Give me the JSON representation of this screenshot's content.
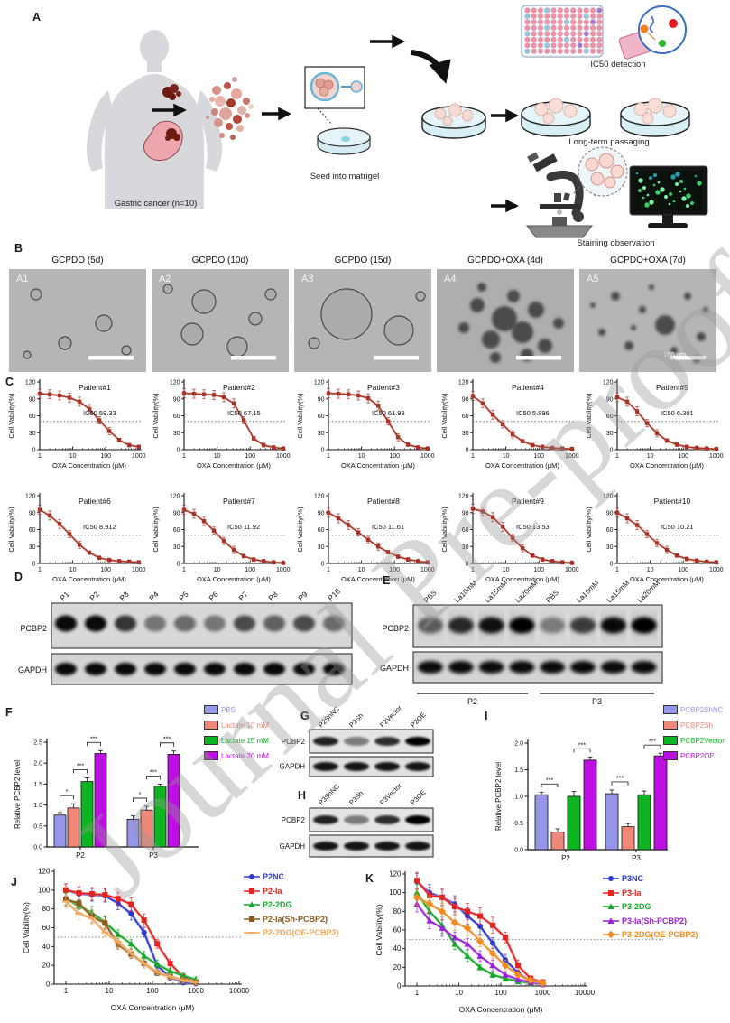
{
  "watermark": "Journal Pre-proof",
  "panel_labels": {
    "A": "A",
    "B": "B",
    "C": "C",
    "D": "D",
    "E": "E",
    "F": "F",
    "G": "G",
    "H": "H",
    "I": "I",
    "J": "J",
    "K": "K"
  },
  "panel_a": {
    "gastric_caption": "Gastric cancer (n=10)",
    "seed_caption": "Seed into matrigel",
    "ic50_caption": "IC50 detection",
    "passaging_caption": "Long-term passaging",
    "staining_caption": "Staining observation"
  },
  "panel_b": {
    "images": [
      {
        "tag": "A1",
        "title": "GCPDO (5d)"
      },
      {
        "tag": "A2",
        "title": "GCPDO (10d)"
      },
      {
        "tag": "A3",
        "title": "GCPDO (15d)"
      },
      {
        "tag": "A4",
        "title": "GCPDO+OXA (4d)"
      },
      {
        "tag": "A5",
        "title": "GCPDO+OXA (7d)",
        "scale_label": "100 μm"
      }
    ]
  },
  "panel_d": {
    "protein_labels": [
      "PCBP2",
      "GAPDH"
    ],
    "lanes": [
      "P1",
      "P2",
      "P3",
      "P4",
      "P5",
      "P6",
      "P7",
      "P8",
      "P9",
      "P10"
    ],
    "pcbp2_intensity": [
      0.95,
      0.95,
      0.75,
      0.45,
      0.5,
      0.45,
      0.65,
      0.55,
      0.65,
      0.5
    ],
    "gapdh_intensity": [
      0.95,
      0.95,
      0.95,
      0.95,
      0.95,
      0.95,
      0.95,
      0.95,
      0.95,
      0.95
    ]
  },
  "panel_e": {
    "protein_labels": [
      "PCBP2",
      "GAPDH"
    ],
    "lanes": [
      "PBS",
      "La10mM",
      "La15mM",
      "La20mM",
      "PBS",
      "La10mM",
      "La15mM",
      "La20mM"
    ],
    "groups": [
      "P2",
      "P3"
    ],
    "pcbp2_intensity": [
      0.55,
      0.8,
      0.92,
      1,
      0.4,
      0.7,
      0.95,
      1
    ],
    "gapdh_intensity": [
      0.95,
      0.95,
      0.95,
      0.95,
      0.95,
      0.95,
      0.95,
      0.95
    ]
  },
  "panel_g": {
    "protein_labels": [
      "PCBP2",
      "GAPDH"
    ],
    "lanes": [
      "P2ShNC",
      "P2Sh",
      "P2Vector",
      "P2OE"
    ],
    "pcbp2_intensity": [
      0.85,
      0.45,
      0.8,
      1
    ],
    "gapdh_intensity": [
      0.9,
      0.9,
      0.9,
      0.9
    ]
  },
  "panel_h": {
    "protein_labels": [
      "PCBP2",
      "GAPDH"
    ],
    "lanes": [
      "P3ShNC",
      "P3Sh",
      "P3Vector",
      "P3OE"
    ],
    "pcbp2_intensity": [
      0.85,
      0.45,
      0.8,
      1
    ],
    "gapdh_intensity": [
      0.9,
      0.9,
      0.9,
      0.9
    ]
  },
  "chart_data": [
    {
      "id": "C",
      "type": "line",
      "xscale": "log",
      "xlabel": "OXA Concentration (μM)",
      "ylabel": "Cell Vability(%)",
      "xlim": [
        1,
        1000
      ],
      "ylim": [
        0,
        120
      ],
      "yticks": [
        0,
        30,
        60,
        90,
        120
      ],
      "xticks": [
        1,
        10,
        100,
        1000
      ],
      "hline": 50,
      "x": [
        1,
        2,
        4,
        8,
        16,
        32,
        64,
        128,
        256,
        512,
        1000
      ],
      "subplots": [
        {
          "title": "Patient#1",
          "ic50_label": "IC50 59.33",
          "ic50": 59.33,
          "y": [
            99,
            98,
            96,
            92,
            85,
            72,
            52,
            33,
            17,
            8,
            5
          ]
        },
        {
          "title": "Patient#2",
          "ic50_label": "IC50 67.15",
          "ic50": 67.15,
          "y": [
            100,
            99,
            98,
            97,
            93,
            82,
            52,
            20,
            8,
            4,
            2
          ]
        },
        {
          "title": "Patient#3",
          "ic50_label": "IC50 61.98",
          "ic50": 61.98,
          "y": [
            100,
            99,
            98,
            96,
            91,
            78,
            50,
            22,
            9,
            4,
            2
          ]
        },
        {
          "title": "Patient#4",
          "ic50_label": "IC50 5.896",
          "ic50": 5.896,
          "y": [
            95,
            82,
            62,
            45,
            27,
            15,
            8,
            5,
            3,
            2,
            1
          ]
        },
        {
          "title": "Patient#5",
          "ic50_label": "IC50 6.301",
          "ic50": 6.301,
          "y": [
            93,
            85,
            68,
            47,
            29,
            16,
            9,
            5,
            3,
            2,
            1
          ]
        },
        {
          "title": "Patient#6",
          "ic50_label": "IC50 8.912",
          "ic50": 8.912,
          "y": [
            95,
            85,
            70,
            52,
            33,
            19,
            10,
            6,
            4,
            3,
            2
          ]
        },
        {
          "title": "Patient#7",
          "ic50_label": "IC50 11.92",
          "ic50": 11.92,
          "y": [
            95,
            88,
            75,
            58,
            40,
            24,
            13,
            7,
            4,
            2,
            1
          ]
        },
        {
          "title": "Patient#8",
          "ic50_label": "IC50 11.61",
          "ic50": 11.61,
          "y": [
            90,
            80,
            68,
            55,
            42,
            30,
            20,
            12,
            7,
            4,
            2
          ]
        },
        {
          "title": "Patient#9",
          "ic50_label": "IC50 13.53",
          "ic50": 13.53,
          "y": [
            97,
            92,
            82,
            65,
            45,
            27,
            14,
            7,
            4,
            2,
            1
          ]
        },
        {
          "title": "Patient#10",
          "ic50_label": "IC50 10.21",
          "ic50": 10.21,
          "y": [
            90,
            80,
            68,
            52,
            36,
            24,
            14,
            8,
            5,
            3,
            2
          ]
        }
      ]
    },
    {
      "id": "F",
      "type": "bar",
      "ylabel": "Relative PCBP2 level",
      "ylim": [
        0,
        2.5
      ],
      "yticks": [
        0,
        0.5,
        1,
        1.5,
        2,
        2.5
      ],
      "categories": [
        "P2",
        "P3"
      ],
      "series": [
        {
          "name": "PBS",
          "color": "#9595ea",
          "values": [
            0.76,
            0.66
          ],
          "errors": [
            0.06,
            0.08
          ]
        },
        {
          "name": "Lactate 10 mM",
          "color": "#ef8878",
          "values": [
            0.93,
            0.88
          ],
          "errors": [
            0.1,
            0.09
          ]
        },
        {
          "name": "Lactate 15 mM",
          "color": "#0db520",
          "values": [
            1.56,
            1.45
          ],
          "errors": [
            0.09,
            0.05
          ]
        },
        {
          "name": "Lactate 20 mM",
          "color": "#bd0fe1",
          "values": [
            2.23,
            2.21
          ],
          "errors": [
            0.07,
            0.08
          ]
        }
      ],
      "sig": [
        {
          "cat": 0,
          "a": 0,
          "b": 1,
          "label": "*"
        },
        {
          "cat": 0,
          "a": 1,
          "b": 2,
          "label": "***"
        },
        {
          "cat": 0,
          "a": 2,
          "b": 3,
          "label": "***"
        },
        {
          "cat": 1,
          "a": 0,
          "b": 1,
          "label": "*"
        },
        {
          "cat": 1,
          "a": 1,
          "b": 2,
          "label": "***"
        },
        {
          "cat": 1,
          "a": 2,
          "b": 3,
          "label": "***"
        }
      ]
    },
    {
      "id": "I",
      "type": "bar",
      "ylabel": "Relative PCBP2 level",
      "ylim": [
        0,
        2
      ],
      "yticks": [
        0,
        0.5,
        1,
        1.5,
        2
      ],
      "categories": [
        "P2",
        "P3"
      ],
      "series": [
        {
          "name": "PCBP2ShNC",
          "color": "#9595ea",
          "values": [
            1.03,
            1.05
          ],
          "errors": [
            0.05,
            0.07
          ]
        },
        {
          "name": "PCBP2Sh",
          "color": "#ef8878",
          "values": [
            0.33,
            0.43
          ],
          "errors": [
            0.06,
            0.06
          ]
        },
        {
          "name": "PCBP2Vector",
          "color": "#0db520",
          "values": [
            1.0,
            1.03
          ],
          "errors": [
            0.09,
            0.07
          ]
        },
        {
          "name": "PCBP2OE",
          "color": "#bd0fe1",
          "values": [
            1.68,
            1.76
          ],
          "errors": [
            0.06,
            0.05
          ]
        }
      ],
      "sig": [
        {
          "cat": 0,
          "a": 0,
          "b": 1,
          "label": "***"
        },
        {
          "cat": 0,
          "a": 2,
          "b": 3,
          "label": "***"
        },
        {
          "cat": 1,
          "a": 0,
          "b": 1,
          "label": "***"
        },
        {
          "cat": 1,
          "a": 2,
          "b": 3,
          "label": "***"
        }
      ]
    },
    {
      "id": "J",
      "type": "line",
      "xscale": "log",
      "xlabel": "OXA Concentration (μM)",
      "ylabel": "Cell Vability(%)",
      "xlim": [
        1,
        10000
      ],
      "ylim": [
        0,
        120
      ],
      "yticks": [
        0,
        20,
        40,
        60,
        80,
        100,
        120
      ],
      "xticks": [
        1,
        10,
        100,
        1000,
        10000
      ],
      "hline": 50,
      "x": [
        1,
        2,
        4,
        8,
        16,
        32,
        64,
        128,
        256,
        512,
        1000
      ],
      "series": [
        {
          "name": "P2NC",
          "color": "#2a35d6",
          "line": "#9a9ff0",
          "marker": "circle",
          "y": [
            100,
            96,
            95,
            94,
            86,
            75,
            55,
            20,
            7,
            2,
            1
          ]
        },
        {
          "name": "P2-la",
          "color": "#e8231f",
          "line": "#f0a0a0",
          "marker": "square",
          "y": [
            100,
            97,
            96,
            95,
            91,
            85,
            68,
            43,
            22,
            8,
            2
          ]
        },
        {
          "name": "P2-2DG",
          "color": "#13a82a",
          "line": "#8fd98f",
          "marker": "triangle",
          "y": [
            91,
            83,
            76,
            66,
            53,
            43,
            30,
            21,
            14,
            9,
            5
          ]
        },
        {
          "name": "P2-la(Sh-PCBP2)",
          "color": "#8a5a1e",
          "line": "#c9a87a",
          "marker": "square",
          "y": [
            90,
            86,
            72,
            65,
            42,
            32,
            22,
            12,
            8,
            4,
            2
          ]
        },
        {
          "name": "P2-2DG(OE-PCBP2)",
          "color": "#f2a75c",
          "line": "#f8d0a8",
          "marker": "dash",
          "y": [
            88,
            75,
            70,
            55,
            45,
            33,
            22,
            13,
            8,
            4,
            2
          ]
        }
      ]
    },
    {
      "id": "K",
      "type": "line",
      "xscale": "log",
      "xlabel": "OXA Concentration (μM)",
      "ylabel": "Cell Vability(%)",
      "xlim": [
        1,
        10000
      ],
      "ylim": [
        0,
        120
      ],
      "yticks": [
        0,
        20,
        40,
        60,
        80,
        100,
        120
      ],
      "xticks": [
        1,
        10,
        100,
        1000,
        10000
      ],
      "hline": 50,
      "x": [
        1,
        2,
        4,
        8,
        16,
        32,
        64,
        128,
        256,
        512,
        1000
      ],
      "series": [
        {
          "name": "P3NC",
          "color": "#2a35d6",
          "line": "#9a9ff0",
          "marker": "circle",
          "y": [
            112,
            100,
            95,
            88,
            75,
            64,
            46,
            28,
            14,
            5,
            2
          ]
        },
        {
          "name": "P3-la",
          "color": "#e8231f",
          "line": "#f0a0a0",
          "marker": "square",
          "y": [
            113,
            97,
            95,
            85,
            80,
            75,
            65,
            52,
            22,
            8,
            4
          ]
        },
        {
          "name": "P3-2DG",
          "color": "#13a82a",
          "line": "#8fd98f",
          "marker": "triangle",
          "y": [
            100,
            80,
            65,
            45,
            32,
            20,
            12,
            8,
            5,
            3,
            2
          ]
        },
        {
          "name": "P3-la(Sh-PCBP2)",
          "color": "#9b1fd6",
          "line": "#d0a0e8",
          "marker": "triangle",
          "y": [
            88,
            70,
            62,
            52,
            45,
            32,
            22,
            12,
            7,
            4,
            2
          ]
        },
        {
          "name": "P3-2DG(OE-PCBP2)",
          "color": "#f08c1e",
          "line": "#f8cfa0",
          "marker": "diamond",
          "y": [
            95,
            88,
            80,
            68,
            62,
            48,
            35,
            22,
            12,
            6,
            3
          ]
        }
      ]
    }
  ]
}
